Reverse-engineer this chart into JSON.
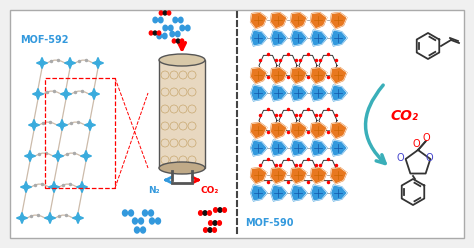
{
  "bg_color": "#f0f0f0",
  "panel_bg": "#ffffff",
  "mof592_label": "MOF-592",
  "mof590_label": "MOF-590",
  "n2_label": "N₂",
  "co2_label_left": "CO₂",
  "co2_label_right": "CO₂",
  "blue_color": "#3399dd",
  "dark_blue": "#2266bb",
  "red_color": "#cc1111",
  "teal_color": "#3aafb9",
  "orange_color": "#e87820",
  "gray_color": "#888888",
  "label_color_mof": "#3399dd",
  "label_color_co2": "#cc1111",
  "lattice_node_color": "#3aabdd",
  "lattice_link_color": "#ccbbaa",
  "cyl_fill": "#e8d8c0",
  "cyl_mesh": "#c8a870",
  "cyl_edge": "#555555"
}
